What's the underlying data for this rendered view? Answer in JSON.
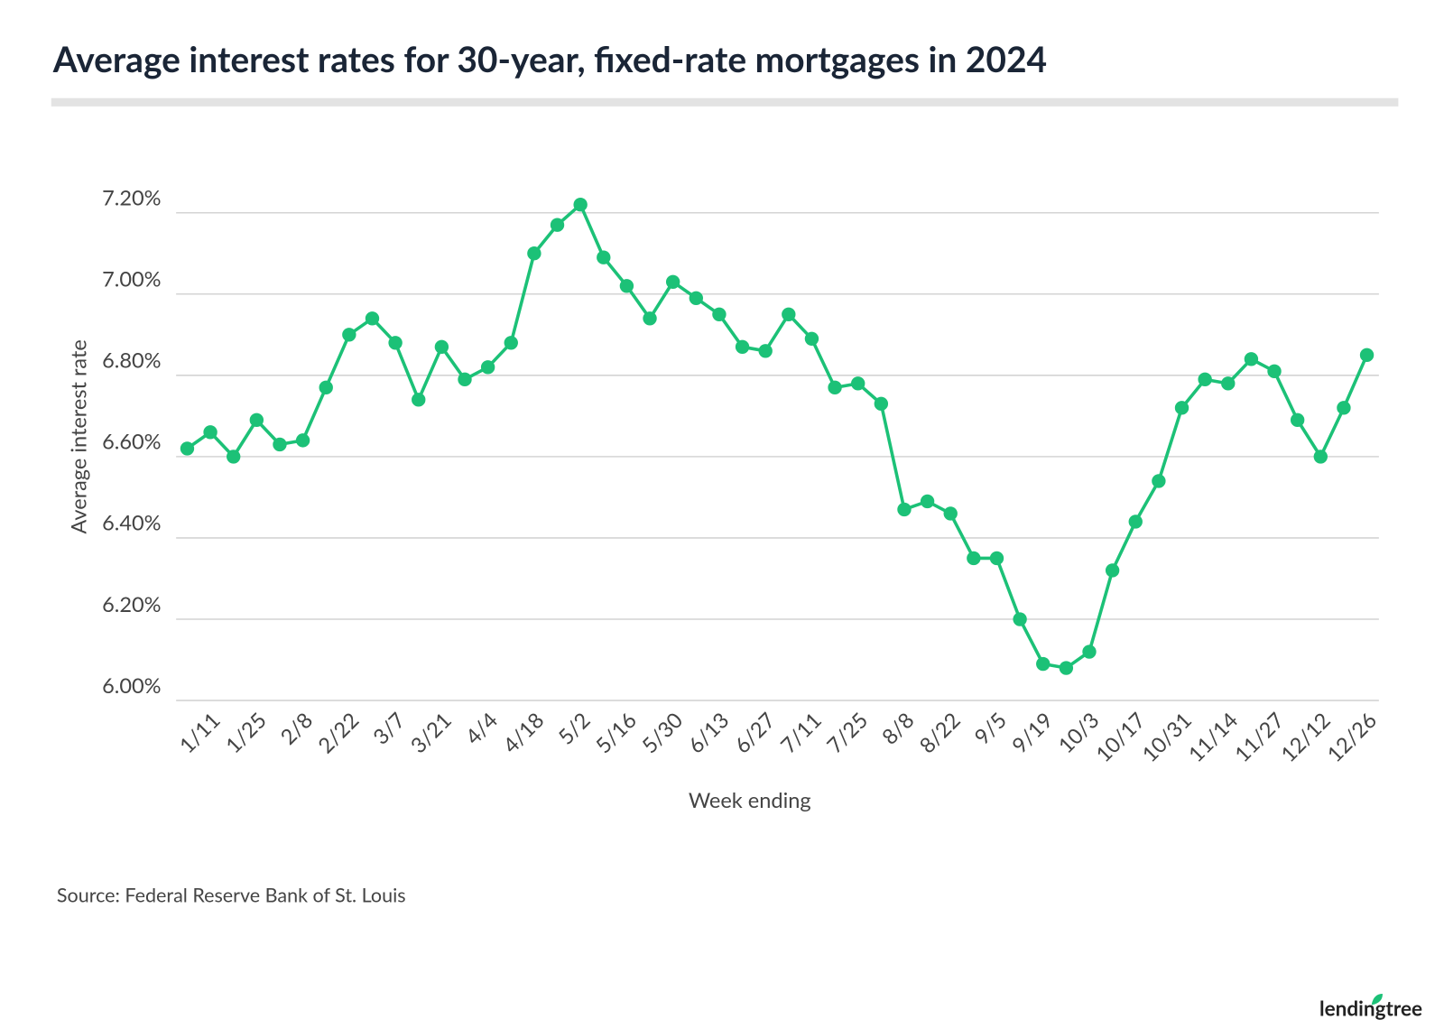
{
  "chart_data": {
    "type": "line",
    "title": "Average interest rates for 30-year, fixed-rate mortgages in 2024",
    "y_label": "Average interest rate",
    "x_label": "Week ending",
    "source": "Source: Federal Reserve Bank of St. Louis",
    "brand": "lendingtree",
    "color": "#1cc177",
    "grid": true,
    "categories": [
      null,
      "1/11",
      null,
      "1/25",
      null,
      "2/8",
      null,
      "2/22",
      null,
      "3/7",
      null,
      "3/21",
      null,
      "4/4",
      null,
      "4/18",
      null,
      "5/2",
      null,
      "5/16",
      null,
      "5/30",
      null,
      "6/13",
      null,
      "6/27",
      null,
      "7/11",
      null,
      "7/25",
      null,
      "8/8",
      null,
      "8/22",
      null,
      "9/5",
      null,
      "9/19",
      null,
      "10/3",
      null,
      "10/17",
      null,
      "10/31",
      null,
      "11/14",
      null,
      "11/27",
      null,
      "12/12",
      null,
      "12/26"
    ],
    "values": [
      6.62,
      6.66,
      6.6,
      6.69,
      6.63,
      6.64,
      6.77,
      6.9,
      6.94,
      6.88,
      6.74,
      6.87,
      6.79,
      6.82,
      6.88,
      7.1,
      7.17,
      7.22,
      7.09,
      7.02,
      6.94,
      7.03,
      6.99,
      6.95,
      6.87,
      6.86,
      6.95,
      6.89,
      6.77,
      6.78,
      6.73,
      6.47,
      6.49,
      6.46,
      6.35,
      6.35,
      6.2,
      6.09,
      6.08,
      6.12,
      6.32,
      6.44,
      6.54,
      6.72,
      6.79,
      6.78,
      6.84,
      6.81,
      6.69,
      6.6,
      6.72,
      6.85
    ],
    "ylim": [
      6.0,
      7.3
    ],
    "yticks": [
      {
        "value": 6.0,
        "label": "6.00%"
      },
      {
        "value": 6.2,
        "label": "6.20%"
      },
      {
        "value": 6.4,
        "label": "6.40%"
      },
      {
        "value": 6.6,
        "label": "6.60%"
      },
      {
        "value": 6.8,
        "label": "6.80%"
      },
      {
        "value": 7.0,
        "label": "7.00%"
      },
      {
        "value": 7.2,
        "label": "7.20%"
      }
    ]
  }
}
